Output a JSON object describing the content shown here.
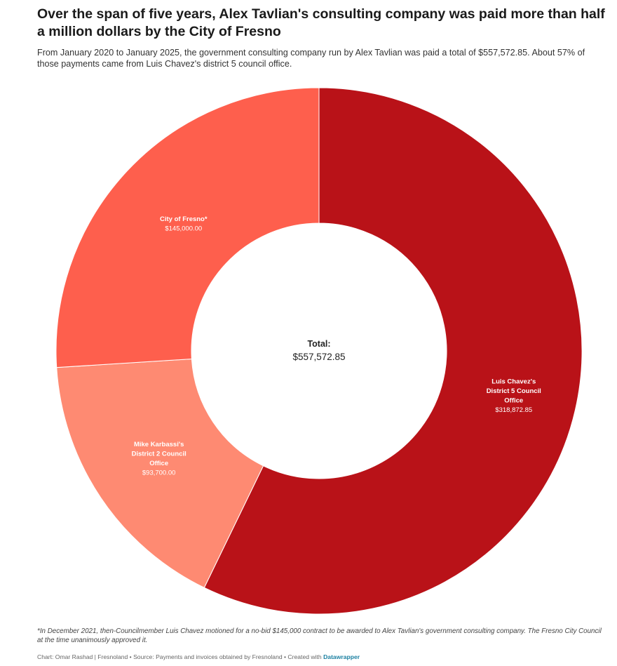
{
  "header": {
    "title": "Over the span of five years, Alex Tavlian's consulting company was paid more than half a million dollars by the City of Fresno",
    "subtitle": "From January 2020 to January 2025, the government consulting company run by Alex Tavlian was paid a total of $557,572.85. About 57% of those payments came from Luis Chavez's district 5 council office."
  },
  "chart_data": {
    "type": "pie",
    "variant": "donut",
    "title": "Over the span of five years, Alex Tavlian's consulting company was paid more than half a million dollars by the City of Fresno",
    "center": {
      "label": "Total:",
      "value": "$557,572.85"
    },
    "slices": [
      {
        "name_lines": [
          "Luis Chavez's",
          "District 5 Council",
          "Office"
        ],
        "value": 318872.85,
        "value_label": "$318,872.85",
        "color": "#b91218"
      },
      {
        "name_lines": [
          "Mike Karbassi's",
          "District 2 Council",
          "Office"
        ],
        "value": 93700.0,
        "value_label": "$93,700.00",
        "color": "#fe8a72"
      },
      {
        "name_lines": [
          "City of Fresno*"
        ],
        "value": 145000.0,
        "value_label": "$145,000.00",
        "color": "#fe5f4d"
      }
    ]
  },
  "footer": {
    "note": "*In December 2021, then-Councilmember Luis Chavez motioned for a no-bid $145,000 contract to be awarded to Alex Tavlian's government consulting company. The Fresno City Council at the time unanimously approved it.",
    "credit": "Chart: Omar Rashad | Fresnoland • Source: Payments and invoices obtained by Fresnoland • Created with",
    "credit_link": "Datawrapper"
  }
}
